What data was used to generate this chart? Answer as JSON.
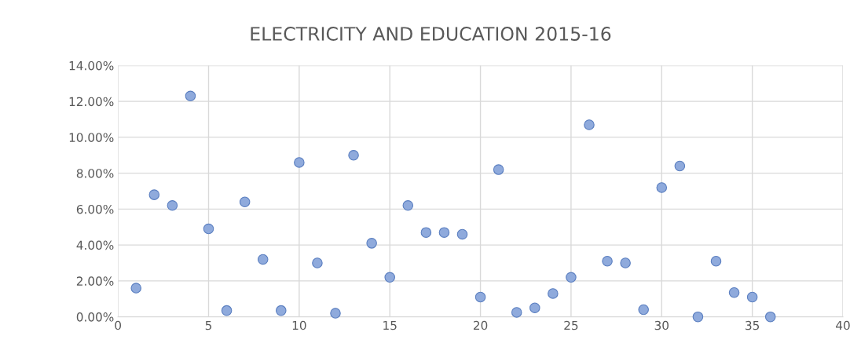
{
  "chart_data": {
    "type": "scatter",
    "title": "ELECTRICITY AND EDUCATION 2015-16",
    "x": [
      1,
      2,
      3,
      4,
      5,
      6,
      7,
      8,
      9,
      10,
      11,
      12,
      13,
      14,
      15,
      16,
      17,
      18,
      19,
      20,
      21,
      22,
      23,
      24,
      25,
      26,
      27,
      28,
      29,
      30,
      31,
      32,
      33,
      34,
      35,
      36
    ],
    "series": [
      {
        "color": "#8faadc",
        "values": [
          1.6,
          6.8,
          6.2,
          12.3,
          4.9,
          0.35,
          6.4,
          3.2,
          0.35,
          8.6,
          3.0,
          0.2,
          9.0,
          4.1,
          2.2,
          6.2,
          4.7,
          4.7,
          4.6,
          1.1,
          8.2,
          0.25,
          0.5,
          1.3,
          2.2,
          10.7,
          3.1,
          3.0,
          0.4,
          7.2,
          8.4,
          0,
          3.1,
          1.35,
          1.1,
          0
        ]
      }
    ],
    "marker": "circle",
    "xlim": [
      0,
      40
    ],
    "xticks": [
      0,
      5,
      10,
      15,
      20,
      25,
      30,
      35,
      40
    ],
    "ylim": [
      0,
      14
    ],
    "yticks": [
      {
        "value": 0,
        "label": "0.00%"
      },
      {
        "value": 2,
        "label": "2.00%"
      },
      {
        "value": 4,
        "label": "4.00%"
      },
      {
        "value": 6,
        "label": "6.00%"
      },
      {
        "value": 8,
        "label": "8.00%"
      },
      {
        "value": 10,
        "label": "10.00%"
      },
      {
        "value": 12,
        "label": "12.00%"
      },
      {
        "value": 14,
        "label": "14.00%"
      }
    ],
    "grid": true
  }
}
